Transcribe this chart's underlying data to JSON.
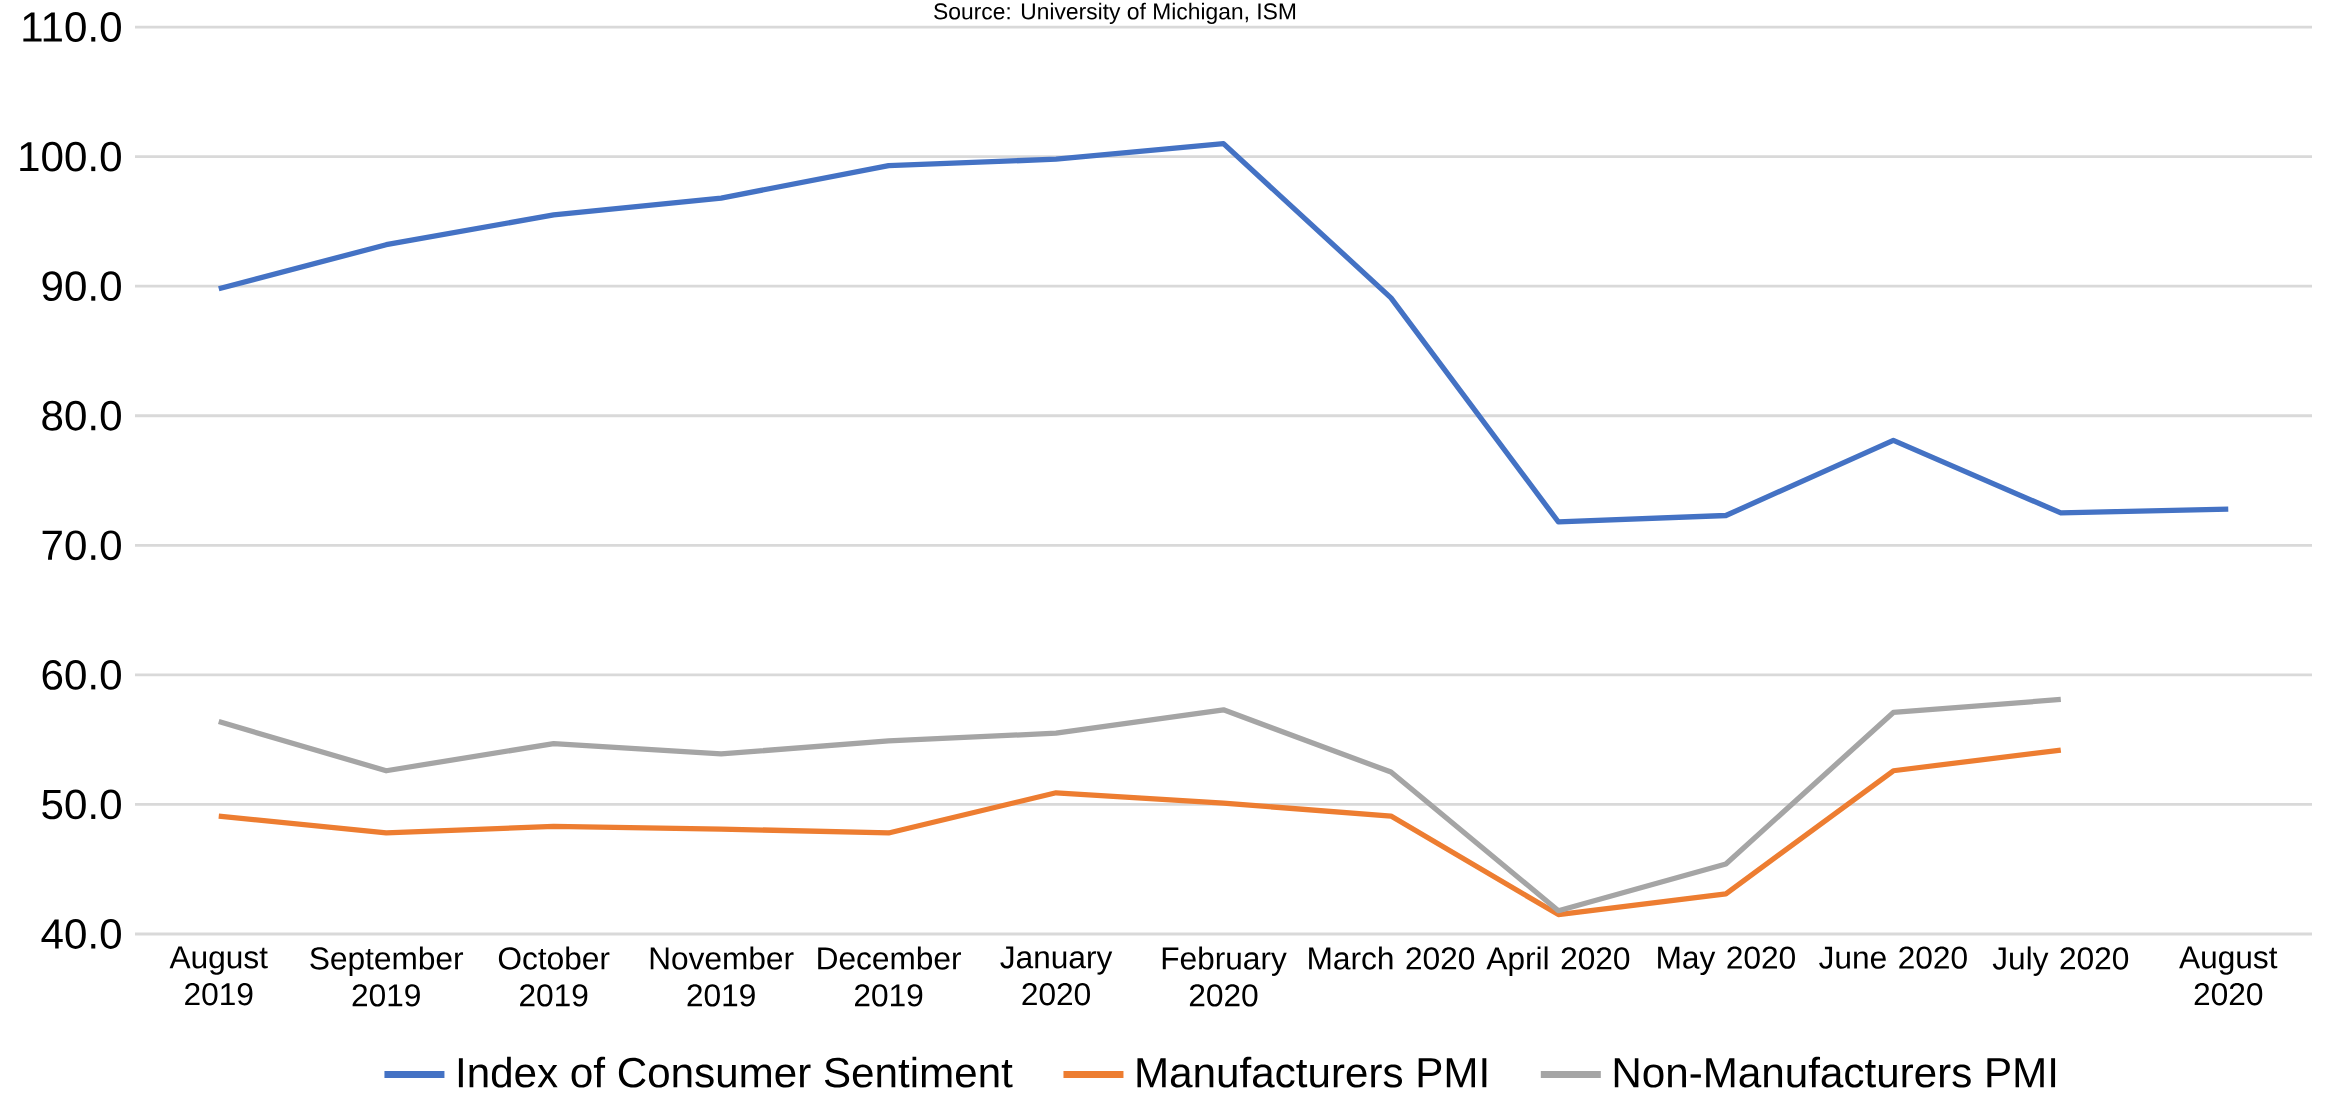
{
  "chart_data": {
    "type": "line",
    "annotations": [
      "Source: University of Michigan, ISM"
    ],
    "categories": [
      "August 2019",
      "September 2019",
      "October 2019",
      "November 2019",
      "December 2019",
      "January 2020",
      "February 2020",
      "March 2020",
      "April 2020",
      "May 2020",
      "June 2020",
      "July 2020",
      "August 2020"
    ],
    "series": [
      {
        "name": "Index of Consumer Sentiment",
        "color": "#4472c4",
        "values": [
          89.8,
          93.2,
          95.5,
          96.8,
          99.3,
          99.8,
          101.0,
          89.1,
          71.8,
          72.3,
          78.1,
          72.5,
          72.8
        ]
      },
      {
        "name": "Manufacturers PMI",
        "color": "#ed7d31",
        "values": [
          49.1,
          47.8,
          48.3,
          48.1,
          47.8,
          50.9,
          50.1,
          49.1,
          41.5,
          43.1,
          52.6,
          54.2,
          null
        ]
      },
      {
        "name": "Non-Manufacturers PMI",
        "color": "#a5a5a5",
        "values": [
          56.4,
          52.6,
          54.7,
          53.9,
          54.9,
          55.5,
          57.3,
          52.5,
          41.8,
          45.4,
          57.1,
          58.1,
          null
        ]
      }
    ],
    "ylim": [
      40,
      110
    ],
    "yticks": [
      {
        "value": 40,
        "label": "40.0"
      },
      {
        "value": 50,
        "label": "50.0"
      },
      {
        "value": 60,
        "label": "60.0"
      },
      {
        "value": 70,
        "label": "70.0"
      },
      {
        "value": 80,
        "label": "80.0"
      },
      {
        "value": 90,
        "label": "90.0"
      },
      {
        "value": 100,
        "label": "100.0"
      },
      {
        "value": 110,
        "label": "110.0"
      }
    ],
    "grid": "y",
    "legend": "bottom"
  }
}
